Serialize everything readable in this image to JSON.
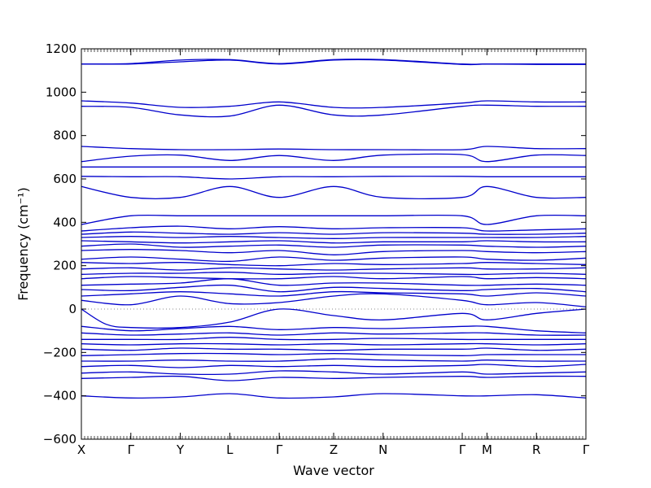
{
  "chart_data": {
    "type": "line",
    "xlabel": "Wave vector",
    "ylabel": "Frequency (cm⁻¹)",
    "ylim": [
      -600,
      1200
    ],
    "yticks": [
      -600,
      -400,
      -200,
      0,
      200,
      400,
      600,
      800,
      1000,
      1200
    ],
    "ytick_labels": [
      "−600",
      "−400",
      "−200",
      "0",
      "200",
      "400",
      "600",
      "800",
      "1000",
      "1200"
    ],
    "xlim": [
      0,
      10.2
    ],
    "xticks": [
      {
        "label": "X",
        "x": 0
      },
      {
        "label": "Γ",
        "x": 1
      },
      {
        "label": "Y",
        "x": 2
      },
      {
        "label": "L",
        "x": 3
      },
      {
        "label": "Γ",
        "x": 4
      },
      {
        "label": "Z",
        "x": 5.1
      },
      {
        "label": "N",
        "x": 6.1
      },
      {
        "label": "Γ",
        "x": 7.7
      },
      {
        "label": "M",
        "x": 8.2
      },
      {
        "label": "R",
        "x": 9.2
      },
      {
        "label": "Γ",
        "x": 10.2
      }
    ],
    "grid": false,
    "line_color": "#0000cc",
    "zero_line": true,
    "series": [
      {
        "x": [
          0,
          1,
          2,
          3,
          4,
          5.1,
          6.1,
          7.7,
          8.2,
          9.2,
          10.2
        ],
        "values": [
          1130,
          1132,
          1148,
          1150,
          1132,
          1150,
          1150,
          1130,
          1130,
          1130,
          1130
        ]
      },
      {
        "x": [
          0,
          1,
          2,
          3,
          4,
          5.1,
          6.1,
          7.7,
          8.2,
          9.2,
          10.2
        ],
        "values": [
          1130,
          1130,
          1140,
          1148,
          1130,
          1148,
          1148,
          1128,
          1130,
          1128,
          1128
        ]
      },
      {
        "x": [
          0,
          1,
          2,
          3,
          4,
          5.1,
          6.1,
          7.7,
          8.2,
          9.2,
          10.2
        ],
        "values": [
          960,
          950,
          930,
          935,
          955,
          930,
          930,
          950,
          960,
          955,
          955
        ]
      },
      {
        "x": [
          0,
          1,
          2,
          3,
          4,
          5.1,
          6.1,
          7.7,
          8.2,
          9.2,
          10.2
        ],
        "values": [
          935,
          930,
          895,
          890,
          940,
          895,
          895,
          935,
          940,
          935,
          935
        ]
      },
      {
        "x": [
          0,
          1,
          2,
          3,
          4,
          5.1,
          6.1,
          7.7,
          8.2,
          9.2,
          10.2
        ],
        "values": [
          750,
          740,
          735,
          735,
          738,
          735,
          735,
          735,
          750,
          740,
          740
        ]
      },
      {
        "x": [
          0,
          1,
          2,
          3,
          4,
          5.1,
          6.1,
          7.7,
          8.2,
          9.2,
          10.2
        ],
        "values": [
          680,
          705,
          710,
          685,
          708,
          685,
          710,
          712,
          680,
          710,
          708
        ]
      },
      {
        "x": [
          0,
          1,
          2,
          3,
          4,
          5.1,
          6.1,
          7.7,
          8.2,
          9.2,
          10.2
        ],
        "values": [
          655,
          655,
          655,
          655,
          655,
          655,
          655,
          655,
          655,
          655,
          655
        ]
      },
      {
        "x": [
          0,
          1,
          2,
          3,
          4,
          5.1,
          6.1,
          7.7,
          8.2,
          9.2,
          10.2
        ],
        "values": [
          612,
          610,
          610,
          600,
          610,
          610,
          612,
          612,
          610,
          610,
          610
        ]
      },
      {
        "x": [
          0,
          1,
          2,
          3,
          4,
          5.1,
          6.1,
          7.7,
          8.2,
          9.2,
          10.2
        ],
        "values": [
          565,
          515,
          515,
          565,
          515,
          565,
          515,
          515,
          565,
          515,
          515
        ]
      },
      {
        "x": [
          0,
          1,
          2,
          3,
          4,
          5.1,
          6.1,
          7.7,
          8.2,
          9.2,
          10.2
        ],
        "values": [
          390,
          430,
          430,
          430,
          430,
          430,
          430,
          430,
          390,
          430,
          430
        ]
      },
      {
        "x": [
          0,
          1,
          2,
          3,
          4,
          5.1,
          6.1,
          7.7,
          8.2,
          9.2,
          10.2
        ],
        "values": [
          360,
          375,
          382,
          370,
          380,
          370,
          375,
          375,
          360,
          365,
          370
        ]
      },
      {
        "x": [
          0,
          1,
          2,
          3,
          4,
          5.1,
          6.1,
          7.7,
          8.2,
          9.2,
          10.2
        ],
        "values": [
          345,
          355,
          350,
          345,
          352,
          345,
          352,
          350,
          345,
          345,
          350
        ]
      },
      {
        "x": [
          0,
          1,
          2,
          3,
          4,
          5.1,
          6.1,
          7.7,
          8.2,
          9.2,
          10.2
        ],
        "values": [
          330,
          335,
          330,
          335,
          330,
          325,
          330,
          330,
          330,
          330,
          335
        ]
      },
      {
        "x": [
          0,
          1,
          2,
          3,
          4,
          5.1,
          6.1,
          7.7,
          8.2,
          9.2,
          10.2
        ],
        "values": [
          315,
          310,
          305,
          310,
          315,
          305,
          310,
          310,
          315,
          310,
          310
        ]
      },
      {
        "x": [
          0,
          1,
          2,
          3,
          4,
          5.1,
          6.1,
          7.7,
          8.2,
          9.2,
          10.2
        ],
        "values": [
          290,
          300,
          285,
          290,
          295,
          285,
          295,
          295,
          290,
          285,
          290
        ]
      },
      {
        "x": [
          0,
          1,
          2,
          3,
          4,
          5.1,
          6.1,
          7.7,
          8.2,
          9.2,
          10.2
        ],
        "values": [
          270,
          275,
          270,
          260,
          270,
          250,
          265,
          270,
          265,
          260,
          265
        ]
      },
      {
        "x": [
          0,
          1,
          2,
          3,
          4,
          5.1,
          6.1,
          7.7,
          8.2,
          9.2,
          10.2
        ],
        "values": [
          230,
          240,
          230,
          220,
          240,
          225,
          235,
          240,
          230,
          225,
          235
        ]
      },
      {
        "x": [
          0,
          1,
          2,
          3,
          4,
          5.1,
          6.1,
          7.7,
          8.2,
          9.2,
          10.2
        ],
        "values": [
          215,
          210,
          215,
          205,
          200,
          210,
          205,
          210,
          215,
          210,
          205
        ]
      },
      {
        "x": [
          0,
          1,
          2,
          3,
          4,
          5.1,
          6.1,
          7.7,
          8.2,
          9.2,
          10.2
        ],
        "values": [
          185,
          190,
          180,
          190,
          185,
          180,
          185,
          190,
          185,
          185,
          190
        ]
      },
      {
        "x": [
          0,
          1,
          2,
          3,
          4,
          5.1,
          6.1,
          7.7,
          8.2,
          9.2,
          10.2
        ],
        "values": [
          160,
          165,
          165,
          170,
          160,
          165,
          165,
          160,
          160,
          165,
          160
        ]
      },
      {
        "x": [
          0,
          1,
          2,
          3,
          4,
          5.1,
          6.1,
          7.7,
          8.2,
          9.2,
          10.2
        ],
        "values": [
          140,
          150,
          145,
          140,
          140,
          150,
          140,
          150,
          140,
          145,
          140
        ]
      },
      {
        "x": [
          0,
          1,
          2,
          3,
          4,
          5.1,
          6.1,
          7.7,
          8.2,
          9.2,
          10.2
        ],
        "values": [
          110,
          115,
          120,
          140,
          110,
          120,
          120,
          110,
          110,
          115,
          110
        ]
      },
      {
        "x": [
          0,
          1,
          2,
          3,
          4,
          5.1,
          6.1,
          7.7,
          8.2,
          9.2,
          10.2
        ],
        "values": [
          90,
          85,
          100,
          110,
          80,
          100,
          95,
          85,
          90,
          95,
          80
        ]
      },
      {
        "x": [
          0,
          1,
          2,
          3,
          4,
          5.1,
          6.1,
          7.7,
          8.2,
          9.2,
          10.2
        ],
        "values": [
          60,
          70,
          80,
          70,
          60,
          80,
          75,
          70,
          60,
          75,
          60
        ]
      },
      {
        "x": [
          0,
          1,
          2,
          3,
          4,
          5.1,
          6.1,
          7.7,
          8.2,
          9.2,
          10.2
        ],
        "values": [
          40,
          20,
          60,
          25,
          30,
          60,
          70,
          40,
          20,
          30,
          10
        ]
      },
      {
        "x": [
          0,
          0.5,
          1,
          2,
          3,
          4,
          5.1,
          6.1,
          7.7,
          8.2,
          9.2,
          10.2
        ],
        "values": [
          0,
          -70,
          -85,
          -85,
          -60,
          0,
          -30,
          -50,
          -20,
          -50,
          -20,
          0
        ]
      },
      {
        "x": [
          0,
          1,
          2,
          3,
          4,
          5.1,
          6.1,
          7.7,
          8.2,
          9.2,
          10.2
        ],
        "values": [
          -80,
          -100,
          -90,
          -80,
          -95,
          -85,
          -90,
          -80,
          -80,
          -100,
          -110
        ]
      },
      {
        "x": [
          0,
          1,
          2,
          3,
          4,
          5.1,
          6.1,
          7.7,
          8.2,
          9.2,
          10.2
        ],
        "values": [
          -110,
          -120,
          -115,
          -110,
          -120,
          -110,
          -115,
          -110,
          -110,
          -120,
          -120
        ]
      },
      {
        "x": [
          0,
          1,
          2,
          3,
          4,
          5.1,
          6.1,
          7.7,
          8.2,
          9.2,
          10.2
        ],
        "values": [
          -140,
          -140,
          -140,
          -130,
          -140,
          -140,
          -135,
          -140,
          -140,
          -140,
          -140
        ]
      },
      {
        "x": [
          0,
          1,
          2,
          3,
          4,
          5.1,
          6.1,
          7.7,
          8.2,
          9.2,
          10.2
        ],
        "values": [
          -160,
          -165,
          -160,
          -160,
          -165,
          -160,
          -165,
          -160,
          -160,
          -165,
          -160
        ]
      },
      {
        "x": [
          0,
          1,
          2,
          3,
          4,
          5.1,
          6.1,
          7.7,
          8.2,
          9.2,
          10.2
        ],
        "values": [
          -185,
          -190,
          -180,
          -185,
          -185,
          -190,
          -185,
          -185,
          -180,
          -190,
          -185
        ]
      },
      {
        "x": [
          0,
          1,
          2,
          3,
          4,
          5.1,
          6.1,
          7.7,
          8.2,
          9.2,
          10.2
        ],
        "values": [
          -215,
          -210,
          -205,
          -205,
          -210,
          -205,
          -210,
          -215,
          -210,
          -210,
          -210
        ]
      },
      {
        "x": [
          0,
          1,
          2,
          3,
          4,
          5.1,
          6.1,
          7.7,
          8.2,
          9.2,
          10.2
        ],
        "values": [
          -240,
          -240,
          -235,
          -240,
          -240,
          -230,
          -235,
          -240,
          -235,
          -240,
          -240
        ]
      },
      {
        "x": [
          0,
          1,
          2,
          3,
          4,
          5.1,
          6.1,
          7.7,
          8.2,
          9.2,
          10.2
        ],
        "values": [
          -265,
          -260,
          -270,
          -260,
          -265,
          -260,
          -265,
          -260,
          -255,
          -265,
          -255
        ]
      },
      {
        "x": [
          0,
          1,
          2,
          3,
          4,
          5.1,
          6.1,
          7.7,
          8.2,
          9.2,
          10.2
        ],
        "values": [
          -295,
          -290,
          -300,
          -300,
          -285,
          -290,
          -300,
          -290,
          -300,
          -295,
          -290
        ]
      },
      {
        "x": [
          0,
          1,
          2,
          3,
          4,
          5.1,
          6.1,
          7.7,
          8.2,
          9.2,
          10.2
        ],
        "values": [
          -320,
          -315,
          -310,
          -330,
          -315,
          -320,
          -315,
          -310,
          -315,
          -310,
          -310
        ]
      },
      {
        "x": [
          0,
          1,
          2,
          3,
          4,
          5.1,
          6.1,
          7.7,
          8.2,
          9.2,
          10.2
        ],
        "values": [
          -400,
          -410,
          -405,
          -390,
          -410,
          -405,
          -390,
          -400,
          -400,
          -395,
          -410
        ]
      }
    ]
  }
}
